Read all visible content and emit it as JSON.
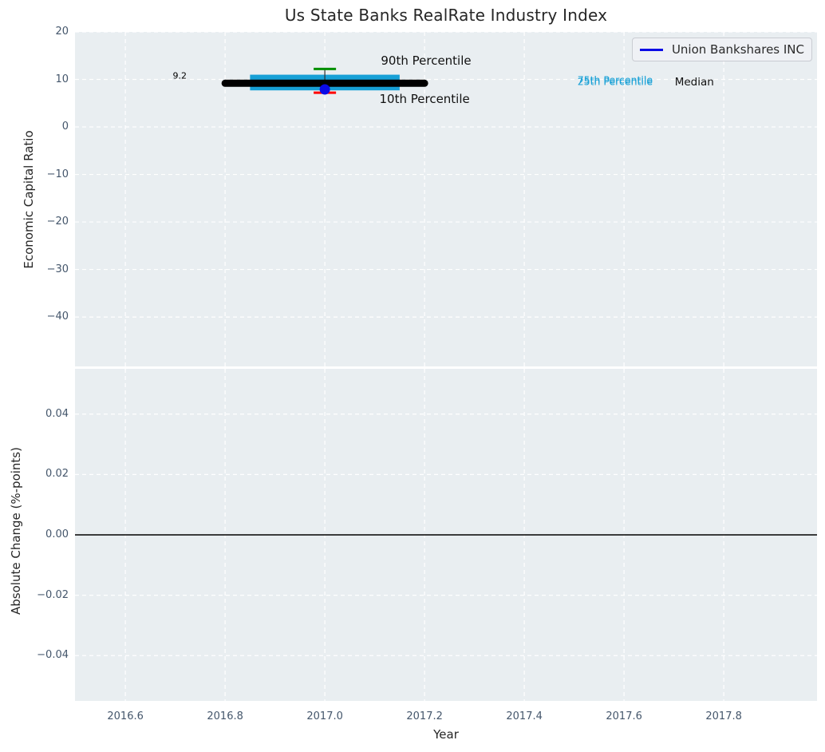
{
  "figure": {
    "title": "Us State Banks RealRate Industry Index",
    "legend": {
      "series_label": "Union Bankshares INC",
      "line_color": "#0a0ae6"
    }
  },
  "chart_data": [
    {
      "type": "boxplot",
      "title": "Us State Banks RealRate Industry Index",
      "xlabel": "Year",
      "ylabel": "Economic Capital Ratio",
      "xlim": [
        2016.499,
        2017.987
      ],
      "ylim": [
        -50.4,
        20
      ],
      "grid": "dashed-white",
      "background": "#e9eef1",
      "xticks": {
        "values": [
          2016.6,
          2016.8,
          2017.0,
          2017.2,
          2017.4,
          2017.6,
          2017.8
        ],
        "labels": [
          "2016.6",
          "2016.8",
          "2017.0",
          "2017.2",
          "2017.4",
          "2017.6",
          "2017.8"
        ],
        "show_labels": false
      },
      "yticks": {
        "values": [
          20,
          10,
          0,
          -10,
          -20,
          -30,
          -40
        ],
        "labels": [
          "20",
          "10",
          "0",
          "−10",
          "−20",
          "−30",
          "−40"
        ]
      },
      "legend": {
        "position": "upper right",
        "entries": [
          {
            "label": "Union Bankshares INC",
            "color": "#0a0ae6"
          }
        ]
      },
      "box": {
        "x": 2017.0,
        "p10": 7.2,
        "p25": 7.7,
        "median": 9.2,
        "p75": 11.0,
        "p90": 12.2,
        "box_x_span": [
          2016.85,
          2017.15
        ],
        "median_x_span": [
          2016.8,
          2017.2
        ],
        "cap_x_span": [
          2016.984,
          2017.016
        ],
        "box_color": "#17a0d6",
        "median_color": "#000000",
        "p90_cap_color": "#008f00",
        "p10_cap_color": "#ff0000",
        "whisker_color": "#2f2f2f"
      },
      "point": {
        "series": "Union Bankshares INC",
        "x": 2017.0,
        "y": 7.9,
        "color": "#0a0ae6"
      },
      "annotations": [
        {
          "text": "9.2",
          "x": 2016.709,
          "y": 10.8,
          "color": "#000000",
          "size": 11
        },
        {
          "text": "90th Percentile",
          "x": 2017.203,
          "y": 13.9,
          "color": "#111111",
          "size": 15
        },
        {
          "text": "10th Percentile",
          "x": 2017.2,
          "y": 5.85,
          "color": "#111111",
          "size": 15
        },
        {
          "text": "75th Percentile",
          "x": 2017.582,
          "y": 9.9,
          "color": "#17a0d6",
          "size": 12.5
        },
        {
          "text": "25th Percentile",
          "x": 2017.582,
          "y": 9.55,
          "color": "#17a0d6",
          "size": 12.5
        },
        {
          "text": "Median",
          "x": 2017.741,
          "y": 9.45,
          "color": "#111111",
          "size": 13.5
        }
      ]
    },
    {
      "type": "line",
      "xlabel": "Year",
      "ylabel": "Absolute Change (%-points)",
      "xlim": [
        2016.499,
        2017.987
      ],
      "ylim": [
        -0.055,
        0.055
      ],
      "grid": "dashed-white",
      "background": "#e9eef1",
      "xticks": {
        "values": [
          2016.6,
          2016.8,
          2017.0,
          2017.2,
          2017.4,
          2017.6,
          2017.8
        ],
        "labels": [
          "2016.6",
          "2016.8",
          "2017.0",
          "2017.2",
          "2017.4",
          "2017.6",
          "2017.8"
        ],
        "show_labels": true
      },
      "yticks": {
        "values": [
          0.04,
          0.02,
          0,
          -0.02,
          -0.04
        ],
        "labels": [
          "0.04",
          "0.02",
          "0.00",
          "−0.02",
          "−0.04"
        ]
      },
      "zero_line": {
        "y": 0.0,
        "color": "#000000"
      },
      "series": []
    }
  ]
}
